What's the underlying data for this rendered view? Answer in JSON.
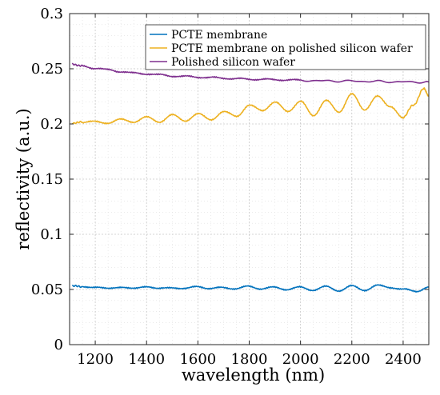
{
  "chart_data": {
    "type": "line",
    "title": "",
    "xlabel": "wavelength (nm)",
    "ylabel": "reflectivity (a.u.)",
    "xlim": [
      1100,
      2500
    ],
    "ylim": [
      0,
      0.3
    ],
    "xticks": [
      1200,
      1400,
      1600,
      1800,
      2000,
      2200,
      2400
    ],
    "yticks": [
      0,
      0.05,
      0.1,
      0.15,
      0.2,
      0.25,
      0.3
    ],
    "ytick_labels": [
      "0",
      "0.05",
      "0.1",
      "0.15",
      "0.2",
      "0.25",
      "0.3"
    ],
    "grid": true,
    "minor_grid": true,
    "legend_position": "top-right",
    "series": [
      {
        "name": "PCTE membrane",
        "color": "#0072BD",
        "x": [
          1110,
          1150,
          1200,
          1250,
          1300,
          1350,
          1400,
          1450,
          1500,
          1550,
          1600,
          1650,
          1700,
          1750,
          1800,
          1850,
          1900,
          1950,
          2000,
          2050,
          2100,
          2150,
          2200,
          2250,
          2300,
          2350,
          2400,
          2450,
          2500
        ],
        "y": [
          0.0535,
          0.052,
          0.0525,
          0.0505,
          0.0525,
          0.0505,
          0.053,
          0.0505,
          0.052,
          0.0505,
          0.053,
          0.0505,
          0.052,
          0.0505,
          0.053,
          0.0505,
          0.052,
          0.05,
          0.052,
          0.0495,
          0.0525,
          0.049,
          0.053,
          0.0495,
          0.0535,
          0.052,
          0.05,
          0.0485,
          0.052
        ]
      },
      {
        "name": "PCTE membrane on polished silicon wafer",
        "color": "#EDB120",
        "x": [
          1110,
          1150,
          1200,
          1250,
          1300,
          1350,
          1400,
          1450,
          1500,
          1550,
          1600,
          1650,
          1700,
          1750,
          1800,
          1850,
          1900,
          1950,
          2000,
          2050,
          2100,
          2150,
          2200,
          2250,
          2300,
          2350,
          2400,
          2440,
          2480,
          2500
        ],
        "y": [
          0.201,
          0.2015,
          0.202,
          0.201,
          0.204,
          0.202,
          0.206,
          0.202,
          0.208,
          0.203,
          0.209,
          0.204,
          0.211,
          0.207,
          0.217,
          0.212,
          0.22,
          0.211,
          0.221,
          0.207,
          0.222,
          0.21,
          0.228,
          0.212,
          0.226,
          0.215,
          0.206,
          0.217,
          0.232,
          0.225
        ]
      },
      {
        "name": "Polished silicon wafer",
        "color": "#7E2F8E",
        "x": [
          1110,
          1150,
          1200,
          1250,
          1300,
          1350,
          1400,
          1450,
          1500,
          1550,
          1600,
          1650,
          1700,
          1750,
          1800,
          1850,
          1900,
          1950,
          2000,
          2100,
          2200,
          2300,
          2400,
          2500
        ],
        "y": [
          0.2545,
          0.2525,
          0.2505,
          0.249,
          0.2475,
          0.246,
          0.2455,
          0.2445,
          0.2435,
          0.243,
          0.2425,
          0.242,
          0.2415,
          0.241,
          0.2405,
          0.2405,
          0.24,
          0.24,
          0.2395,
          0.239,
          0.2388,
          0.2385,
          0.238,
          0.238
        ]
      }
    ]
  }
}
